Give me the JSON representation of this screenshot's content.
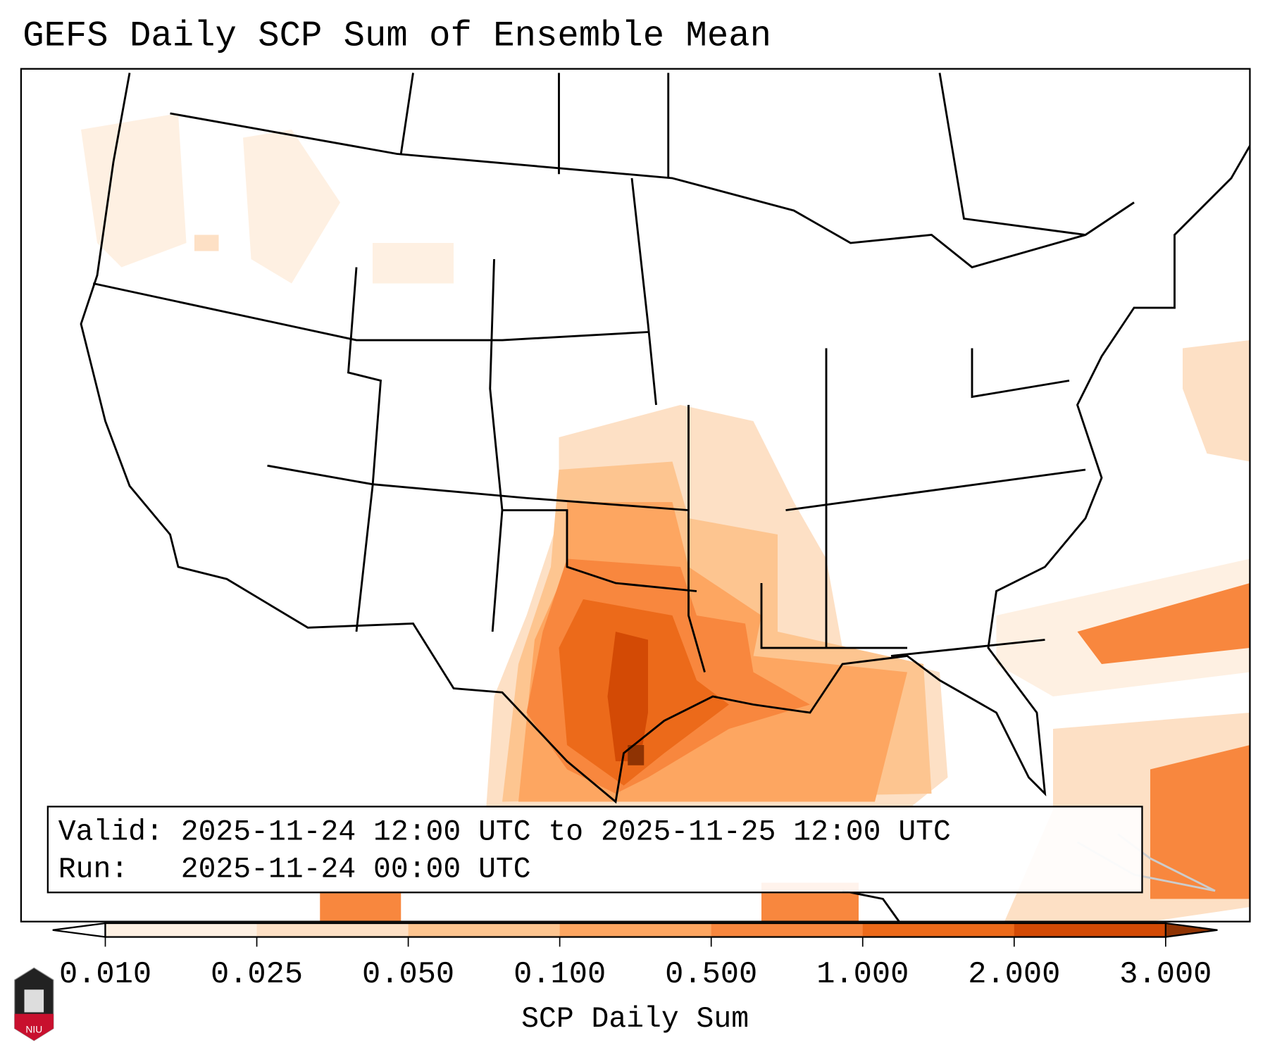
{
  "title": "GEFS Daily SCP Sum of Ensemble Mean",
  "info": {
    "valid_label": "Valid:",
    "valid_value": "2025-11-24 12:00 UTC to 2025-11-25 12:00 UTC",
    "run_label": "Run:",
    "run_value": "2025-11-24 00:00 UTC"
  },
  "logo_text": "NIU",
  "chart_data": {
    "type": "heatmap",
    "title": "GEFS Daily SCP Sum of Ensemble Mean",
    "colorbar_label": "SCP Daily Sum",
    "levels": [
      0.01,
      0.025,
      0.05,
      0.1,
      0.5,
      1.0,
      2.0,
      3.0
    ],
    "tick_labels": [
      "0.010",
      "0.025",
      "0.050",
      "0.100",
      "0.500",
      "1.000",
      "2.000",
      "3.000"
    ],
    "colors": [
      "#fef0e2",
      "#fde0c5",
      "#fdc590",
      "#fda661",
      "#f8873e",
      "#ec6a1a",
      "#d34a05"
    ],
    "extend_max_color": "#8f3303",
    "extend_min_color": "#ffffff",
    "region": "CONUS",
    "max_region": "Upper Texas coast / East Texas",
    "max_value_approx": 3.0
  }
}
